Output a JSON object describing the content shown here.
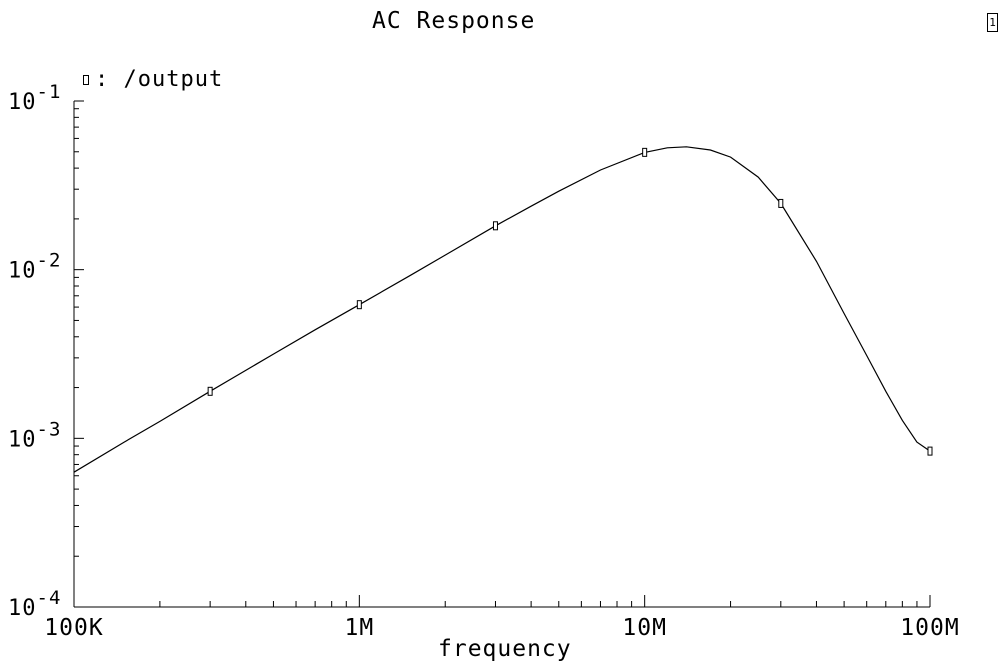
{
  "chart_data": {
    "type": "line",
    "title": "AC Response",
    "xlabel": "frequency",
    "ylabel": "",
    "x_scale": "log",
    "y_scale": "log",
    "xlim": [
      100000,
      100000000
    ],
    "ylim": [
      0.0001,
      0.1
    ],
    "grid": false,
    "legend_position": "top-left",
    "x_tick_labels": [
      {
        "value": 100000,
        "label": "100K"
      },
      {
        "value": 1000000,
        "label": "1M"
      },
      {
        "value": 10000000,
        "label": "10M"
      },
      {
        "value": 100000000,
        "label": "100M"
      }
    ],
    "y_tick_labels": [
      {
        "value": 0.1,
        "base": "10",
        "exp": "-1"
      },
      {
        "value": 0.01,
        "base": "10",
        "exp": "-2"
      },
      {
        "value": 0.001,
        "base": "10",
        "exp": "-3"
      },
      {
        "value": 0.0001,
        "base": "10",
        "exp": "-4"
      }
    ],
    "series": [
      {
        "name": "/output",
        "x": [
          100000,
          150000,
          200000,
          300000,
          500000,
          700000,
          1000000,
          1500000,
          2000000,
          3000000,
          4000000,
          5000000,
          7000000,
          10000000,
          12000000,
          14000000,
          17000000,
          20000000,
          25000000,
          30000000,
          40000000,
          50000000,
          60000000,
          70000000,
          80000000,
          90000000,
          100000000
        ],
        "y": [
          0.00063,
          0.00095,
          0.00126,
          0.0019,
          0.00316,
          0.0044,
          0.0062,
          0.0092,
          0.0122,
          0.0182,
          0.0238,
          0.0292,
          0.039,
          0.0496,
          0.0528,
          0.0535,
          0.0512,
          0.0465,
          0.0354,
          0.0247,
          0.0112,
          0.0055,
          0.0031,
          0.0019,
          0.00128,
          0.00095,
          0.00084
        ],
        "markers_x": [
          300000,
          1000000,
          3000000,
          10000000,
          30000000,
          100000000
        ],
        "markers_y": [
          0.0019,
          0.0062,
          0.0182,
          0.0496,
          0.0247,
          0.00084
        ]
      }
    ]
  },
  "ui": {
    "window_badge": "1",
    "legend_label": ": /output"
  }
}
